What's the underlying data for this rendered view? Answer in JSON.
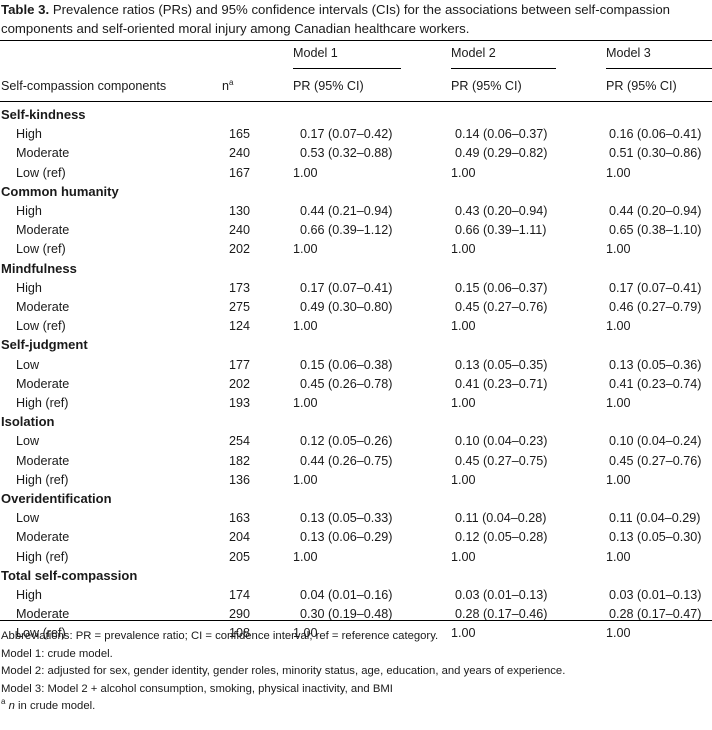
{
  "caption": {
    "label": "Table 3.",
    "text": "Prevalence ratios (PRs) and 95% confidence intervals (CIs) for the associations between self-compassion components and self-oriented moral injury among Canadian healthcare workers."
  },
  "header": {
    "col_component": "Self-compassion components",
    "col_n": "n",
    "col_n_sup": "a",
    "models": [
      "Model 1",
      "Model 2",
      "Model 3"
    ],
    "pr_label": "PR (95% CI)"
  },
  "groups": [
    {
      "title": "Self-kindness",
      "rows": [
        {
          "level": "High",
          "n": "165",
          "m1": "0.17 (0.07–0.42)",
          "m2": "0.14 (0.06–0.37)",
          "m3": "0.16 (0.06–0.41)"
        },
        {
          "level": "Moderate",
          "n": "240",
          "m1": "0.53 (0.32–0.88)",
          "m2": "0.49 (0.29–0.82)",
          "m3": "0.51 (0.30–0.86)"
        },
        {
          "level": "Low (ref)",
          "n": "167",
          "m1": "1.00",
          "m2": "1.00",
          "m3": "1.00"
        }
      ]
    },
    {
      "title": "Common humanity",
      "rows": [
        {
          "level": "High",
          "n": "130",
          "m1": "0.44 (0.21–0.94)",
          "m2": "0.43 (0.20–0.94)",
          "m3": "0.44 (0.20–0.94)"
        },
        {
          "level": "Moderate",
          "n": "240",
          "m1": "0.66 (0.39–1.12)",
          "m2": "0.66 (0.39–1.11)",
          "m3": "0.65 (0.38–1.10)"
        },
        {
          "level": "Low (ref)",
          "n": "202",
          "m1": "1.00",
          "m2": "1.00",
          "m3": "1.00"
        }
      ]
    },
    {
      "title": "Mindfulness",
      "rows": [
        {
          "level": "High",
          "n": "173",
          "m1": "0.17 (0.07–0.41)",
          "m2": "0.15 (0.06–0.37)",
          "m3": "0.17 (0.07–0.41)"
        },
        {
          "level": "Moderate",
          "n": "275",
          "m1": "0.49 (0.30–0.80)",
          "m2": "0.45 (0.27–0.76)",
          "m3": "0.46 (0.27–0.79)"
        },
        {
          "level": "Low (ref)",
          "n": "124",
          "m1": "1.00",
          "m2": "1.00",
          "m3": "1.00"
        }
      ]
    },
    {
      "title": "Self-judgment",
      "rows": [
        {
          "level": "Low",
          "n": "177",
          "m1": "0.15 (0.06–0.38)",
          "m2": "0.13 (0.05–0.35)",
          "m3": "0.13 (0.05–0.36)"
        },
        {
          "level": "Moderate",
          "n": "202",
          "m1": "0.45 (0.26–0.78)",
          "m2": "0.41 (0.23–0.71)",
          "m3": "0.41 (0.23–0.74)"
        },
        {
          "level": "High (ref)",
          "n": "193",
          "m1": "1.00",
          "m2": "1.00",
          "m3": "1.00"
        }
      ]
    },
    {
      "title": "Isolation",
      "rows": [
        {
          "level": "Low",
          "n": "254",
          "m1": "0.12 (0.05–0.26)",
          "m2": "0.10 (0.04–0.23)",
          "m3": "0.10 (0.04–0.24)"
        },
        {
          "level": "Moderate",
          "n": "182",
          "m1": "0.44 (0.26–0.75)",
          "m2": "0.45 (0.27–0.75)",
          "m3": "0.45 (0.27–0.76)"
        },
        {
          "level": "High (ref)",
          "n": "136",
          "m1": "1.00",
          "m2": "1.00",
          "m3": "1.00"
        }
      ]
    },
    {
      "title": "Overidentification",
      "rows": [
        {
          "level": "Low",
          "n": "163",
          "m1": "0.13 (0.05–0.33)",
          "m2": "0.11 (0.04–0.28)",
          "m3": "0.11 (0.04–0.29)"
        },
        {
          "level": "Moderate",
          "n": "204",
          "m1": "0.13 (0.06–0.29)",
          "m2": "0.12 (0.05–0.28)",
          "m3": "0.13 (0.05–0.30)"
        },
        {
          "level": "High (ref)",
          "n": "205",
          "m1": "1.00",
          "m2": "1.00",
          "m3": "1.00"
        }
      ]
    },
    {
      "title": "Total self-compassion",
      "rows": [
        {
          "level": "High",
          "n": "174",
          "m1": "0.04 (0.01–0.16)",
          "m2": "0.03 (0.01–0.13)",
          "m3": "0.03 (0.01–0.13)"
        },
        {
          "level": "Moderate",
          "n": "290",
          "m1": "0.30 (0.19–0.48)",
          "m2": "0.28 (0.17–0.46)",
          "m3": "0.28 (0.17–0.47)"
        },
        {
          "level": "Low (ref)",
          "n": "108",
          "m1": "1.00",
          "m2": "1.00",
          "m3": "1.00"
        }
      ]
    }
  ],
  "notes": {
    "abbreviations": "Abbreviations: PR = prevalence ratio; CI = confidence interval; ref = reference category.",
    "model1": "Model 1: crude model.",
    "model2": "Model 2: adjusted for sex, gender identity, gender roles, minority status, age, education, and years of experience.",
    "model3": "Model 3: Model 2 + alcohol consumption, smoking, physical inactivity, and BMI",
    "footnote_mark": "a",
    "footnote_n": "n",
    "footnote_text": " in crude model."
  }
}
